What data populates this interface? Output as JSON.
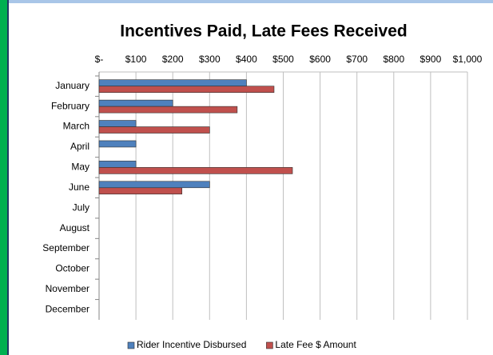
{
  "chart_data": {
    "type": "hbar",
    "title": "Incentives Paid, Late Fees Received",
    "categories": [
      "January",
      "February",
      "March",
      "April",
      "May",
      "June",
      "July",
      "August",
      "September",
      "October",
      "November",
      "December"
    ],
    "series": [
      {
        "name": "Rider Incentive Disbursed",
        "color": "#4f81bd",
        "values": [
          400,
          200,
          100,
          100,
          100,
          300,
          null,
          null,
          null,
          null,
          null,
          null
        ]
      },
      {
        "name": "Late Fee $ Amount",
        "color": "#c0504d",
        "values": [
          475,
          375,
          300,
          null,
          525,
          225,
          null,
          null,
          null,
          null,
          null,
          null
        ]
      }
    ],
    "xlim": [
      0,
      1000
    ],
    "xticks": [
      {
        "value": 0,
        "label": "$-"
      },
      {
        "value": 100,
        "label": "$100"
      },
      {
        "value": 200,
        "label": "$200"
      },
      {
        "value": 300,
        "label": "$300"
      },
      {
        "value": 400,
        "label": "$400"
      },
      {
        "value": 500,
        "label": "$500"
      },
      {
        "value": 600,
        "label": "$600"
      },
      {
        "value": 700,
        "label": "$700"
      },
      {
        "value": 800,
        "label": "$800"
      },
      {
        "value": 900,
        "label": "$900"
      },
      {
        "value": 1000,
        "label": "$1,000"
      }
    ],
    "grid": true,
    "legend": "bottom"
  }
}
